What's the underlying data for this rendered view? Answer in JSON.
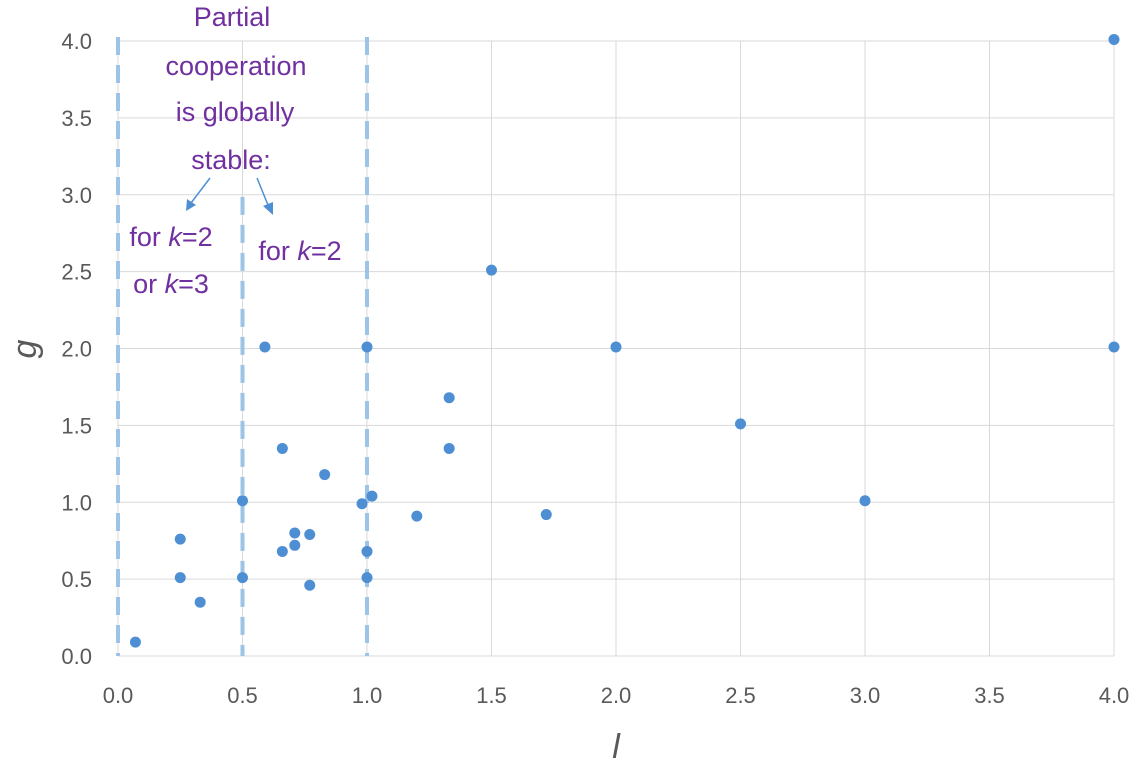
{
  "chart_data": {
    "type": "scatter",
    "xlabel": "l",
    "ylabel": "g",
    "xlim": [
      0,
      4
    ],
    "ylim": [
      0,
      4
    ],
    "xticks": [
      "0.0",
      "0.5",
      "1.0",
      "1.5",
      "2.0",
      "2.5",
      "3.0",
      "3.5",
      "4.0"
    ],
    "yticks": [
      "0.0",
      "0.5",
      "1.0",
      "1.5",
      "2.0",
      "2.5",
      "3.0",
      "3.5",
      "4.0"
    ],
    "grid": true,
    "points": [
      {
        "x": 0.07,
        "y": 0.09
      },
      {
        "x": 0.25,
        "y": 0.76
      },
      {
        "x": 0.25,
        "y": 0.51
      },
      {
        "x": 0.33,
        "y": 0.35
      },
      {
        "x": 0.5,
        "y": 1.01
      },
      {
        "x": 0.5,
        "y": 0.51
      },
      {
        "x": 0.59,
        "y": 2.01
      },
      {
        "x": 0.66,
        "y": 1.35
      },
      {
        "x": 0.66,
        "y": 0.68
      },
      {
        "x": 0.71,
        "y": 0.8
      },
      {
        "x": 0.71,
        "y": 0.72
      },
      {
        "x": 0.77,
        "y": 0.79
      },
      {
        "x": 0.77,
        "y": 0.46
      },
      {
        "x": 0.83,
        "y": 1.18
      },
      {
        "x": 0.98,
        "y": 0.99
      },
      {
        "x": 1.0,
        "y": 2.01
      },
      {
        "x": 1.0,
        "y": 0.68
      },
      {
        "x": 1.0,
        "y": 0.51
      },
      {
        "x": 1.02,
        "y": 1.04
      },
      {
        "x": 1.2,
        "y": 0.91
      },
      {
        "x": 1.33,
        "y": 1.68
      },
      {
        "x": 1.33,
        "y": 1.35
      },
      {
        "x": 1.5,
        "y": 2.51
      },
      {
        "x": 1.72,
        "y": 0.92
      },
      {
        "x": 2.0,
        "y": 2.01
      },
      {
        "x": 2.5,
        "y": 1.51
      },
      {
        "x": 3.0,
        "y": 1.01
      },
      {
        "x": 4.0,
        "y": 4.01
      },
      {
        "x": 4.0,
        "y": 2.01
      }
    ],
    "reference_lines": [
      {
        "x": 0.0,
        "y_top": 4.0
      },
      {
        "x": 0.5,
        "y_top": 2.96
      },
      {
        "x": 1.0,
        "y_top": 4.0
      }
    ],
    "annotations": {
      "heading": [
        "Partial",
        "cooperation",
        "is globally",
        "stable:"
      ],
      "left_region": {
        "line1_prefix": "for ",
        "line1_k": "k",
        "line1_suffix": "=2",
        "line2_prefix": "or ",
        "line2_k": "k",
        "line2_suffix": "=3"
      },
      "right_region": {
        "prefix": "for ",
        "k": "k",
        "suffix": "=2"
      }
    },
    "colors": {
      "points": "#4e8fd4",
      "reference_lines": "#9dc3e6",
      "annotation_text": "#7030a0"
    }
  }
}
